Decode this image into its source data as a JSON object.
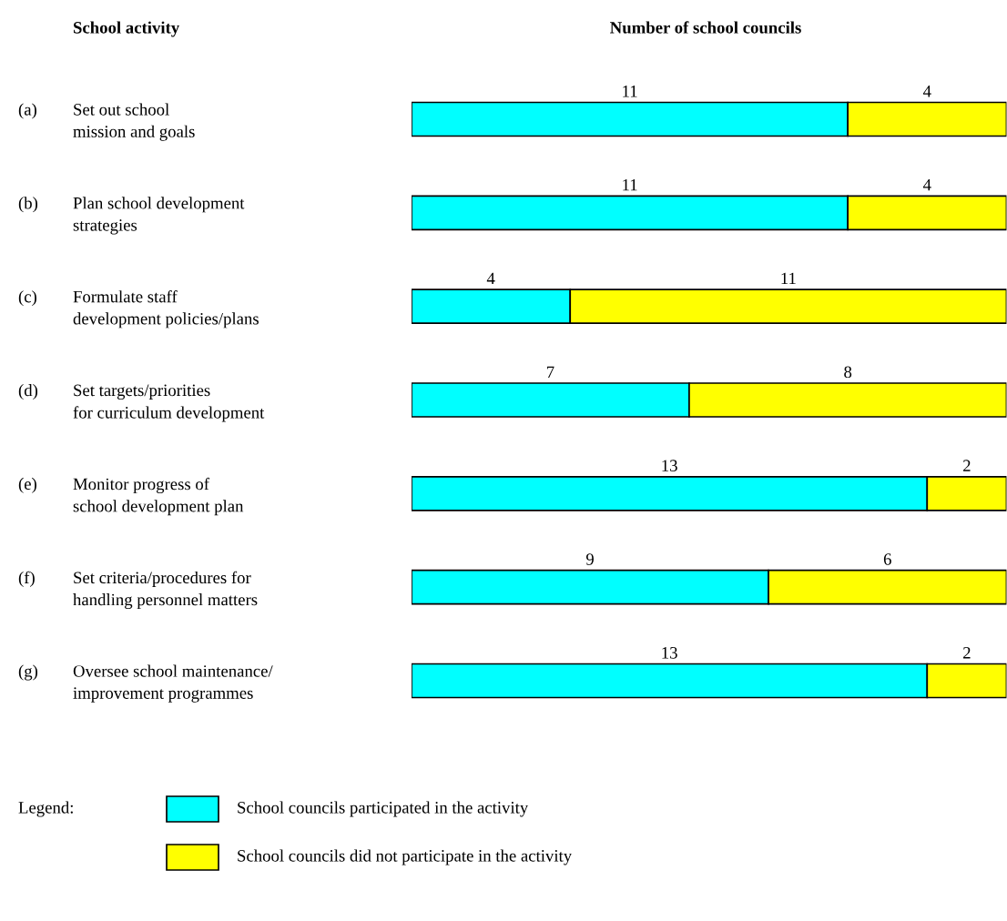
{
  "chart_data": {
    "type": "bar",
    "orientation": "horizontal",
    "stacked": true,
    "title": "Number of school councils",
    "annotations": [
      "School activity"
    ],
    "legend_title": "Legend:",
    "categories": [
      "(a) Set out school\nmission and goals",
      "(b) Plan school development\nstrategies",
      "(c) Formulate staff\ndevelopment policies/plans",
      "(d) Set targets/priorities\nfor curriculum development",
      "(e) Monitor progress of\nschool development plan",
      "(f) Set criteria/procedures for\nhandling personnel matters",
      "(g) Oversee school maintenance/\nimprovement programmes"
    ],
    "series": [
      {
        "name": "School councils participated in the activity",
        "color": "#00ffff",
        "values": [
          11,
          11,
          4,
          7,
          13,
          9,
          13
        ]
      },
      {
        "name": "School councils did not participate in the activity",
        "color": "#ffff00",
        "values": [
          4,
          4,
          11,
          8,
          2,
          6,
          2
        ]
      }
    ],
    "data_labels": true,
    "legend": "bottom"
  }
}
